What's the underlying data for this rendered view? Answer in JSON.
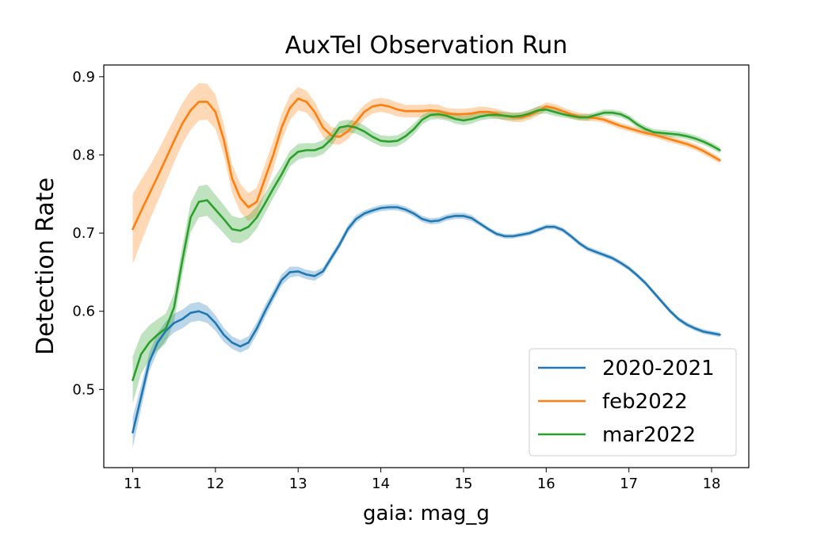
{
  "chart_data": {
    "type": "line",
    "title": "AuxTel Observation Run",
    "xlabel": "gaia: mag_g",
    "ylabel": "Detection Rate",
    "xlim": [
      10.65,
      18.45
    ],
    "ylim": [
      0.4,
      0.915
    ],
    "xticks": [
      11,
      12,
      13,
      14,
      15,
      16,
      17,
      18
    ],
    "yticks": [
      0.5,
      0.6,
      0.7,
      0.8,
      0.9
    ],
    "grid": false,
    "legend_position": "lower-right",
    "series": [
      {
        "name": "2020-2021",
        "color": "#1f77b4",
        "x": [
          11.0,
          11.1,
          11.2,
          11.3,
          11.4,
          11.5,
          11.6,
          11.7,
          11.8,
          11.9,
          12.0,
          12.1,
          12.2,
          12.3,
          12.4,
          12.5,
          12.6,
          12.7,
          12.8,
          12.9,
          13.0,
          13.1,
          13.2,
          13.3,
          13.4,
          13.5,
          13.6,
          13.7,
          13.8,
          13.9,
          14.0,
          14.1,
          14.2,
          14.3,
          14.4,
          14.5,
          14.6,
          14.7,
          14.8,
          14.9,
          15.0,
          15.1,
          15.2,
          15.3,
          15.4,
          15.5,
          15.6,
          15.7,
          15.8,
          15.9,
          16.0,
          16.1,
          16.2,
          16.3,
          16.4,
          16.5,
          16.6,
          16.7,
          16.8,
          16.9,
          17.0,
          17.1,
          17.2,
          17.3,
          17.4,
          17.5,
          17.6,
          17.7,
          17.8,
          17.9,
          18.0,
          18.1
        ],
        "y": [
          0.445,
          0.49,
          0.535,
          0.56,
          0.575,
          0.585,
          0.59,
          0.598,
          0.6,
          0.596,
          0.585,
          0.57,
          0.56,
          0.555,
          0.56,
          0.578,
          0.6,
          0.62,
          0.64,
          0.65,
          0.651,
          0.647,
          0.645,
          0.651,
          0.668,
          0.685,
          0.705,
          0.718,
          0.725,
          0.729,
          0.732,
          0.733,
          0.733,
          0.73,
          0.725,
          0.718,
          0.715,
          0.716,
          0.72,
          0.722,
          0.722,
          0.719,
          0.712,
          0.705,
          0.699,
          0.696,
          0.696,
          0.698,
          0.7,
          0.704,
          0.708,
          0.708,
          0.704,
          0.696,
          0.687,
          0.68,
          0.676,
          0.672,
          0.668,
          0.662,
          0.655,
          0.646,
          0.636,
          0.624,
          0.612,
          0.6,
          0.59,
          0.583,
          0.578,
          0.574,
          0.572,
          0.57
        ],
        "band": [
          0.02,
          0.015,
          0.012,
          0.012,
          0.012,
          0.012,
          0.012,
          0.012,
          0.012,
          0.011,
          0.01,
          0.009,
          0.008,
          0.008,
          0.008,
          0.008,
          0.008,
          0.007,
          0.007,
          0.007,
          0.006,
          0.006,
          0.006,
          0.005,
          0.005,
          0.005,
          0.005,
          0.005,
          0.004,
          0.004,
          0.004,
          0.004,
          0.004,
          0.004,
          0.004,
          0.004,
          0.004,
          0.004,
          0.004,
          0.004,
          0.004,
          0.004,
          0.003,
          0.003,
          0.003,
          0.003,
          0.003,
          0.003,
          0.003,
          0.003,
          0.003,
          0.003,
          0.003,
          0.003,
          0.003,
          0.003,
          0.003,
          0.003,
          0.003,
          0.003,
          0.003,
          0.003,
          0.003,
          0.003,
          0.003,
          0.003,
          0.003,
          0.003,
          0.003,
          0.003,
          0.003,
          0.003
        ]
      },
      {
        "name": "feb2022",
        "color": "#ff7f0e",
        "x": [
          11.0,
          11.1,
          11.2,
          11.3,
          11.4,
          11.5,
          11.6,
          11.7,
          11.8,
          11.9,
          12.0,
          12.1,
          12.2,
          12.3,
          12.4,
          12.5,
          12.6,
          12.7,
          12.8,
          12.9,
          13.0,
          13.1,
          13.2,
          13.3,
          13.4,
          13.5,
          13.6,
          13.7,
          13.8,
          13.9,
          14.0,
          14.1,
          14.2,
          14.3,
          14.4,
          14.5,
          14.6,
          14.7,
          14.8,
          14.9,
          15.0,
          15.1,
          15.2,
          15.3,
          15.4,
          15.5,
          15.6,
          15.7,
          15.8,
          15.9,
          16.0,
          16.1,
          16.2,
          16.3,
          16.4,
          16.5,
          16.6,
          16.7,
          16.8,
          16.9,
          17.0,
          17.1,
          17.2,
          17.3,
          17.4,
          17.5,
          17.6,
          17.7,
          17.8,
          17.9,
          18.0,
          18.1
        ],
        "y": [
          0.705,
          0.728,
          0.75,
          0.772,
          0.795,
          0.818,
          0.84,
          0.857,
          0.868,
          0.868,
          0.855,
          0.82,
          0.77,
          0.745,
          0.733,
          0.74,
          0.77,
          0.8,
          0.835,
          0.86,
          0.872,
          0.868,
          0.855,
          0.835,
          0.825,
          0.823,
          0.83,
          0.842,
          0.855,
          0.862,
          0.864,
          0.862,
          0.858,
          0.856,
          0.856,
          0.856,
          0.857,
          0.856,
          0.853,
          0.852,
          0.852,
          0.853,
          0.855,
          0.855,
          0.853,
          0.85,
          0.848,
          0.848,
          0.851,
          0.856,
          0.862,
          0.86,
          0.856,
          0.852,
          0.849,
          0.848,
          0.847,
          0.845,
          0.841,
          0.837,
          0.834,
          0.831,
          0.828,
          0.826,
          0.823,
          0.82,
          0.817,
          0.814,
          0.81,
          0.805,
          0.799,
          0.793
        ],
        "band": [
          0.045,
          0.04,
          0.035,
          0.032,
          0.03,
          0.028,
          0.026,
          0.025,
          0.024,
          0.023,
          0.022,
          0.02,
          0.018,
          0.018,
          0.018,
          0.018,
          0.018,
          0.018,
          0.017,
          0.016,
          0.015,
          0.014,
          0.013,
          0.012,
          0.011,
          0.01,
          0.01,
          0.01,
          0.009,
          0.009,
          0.009,
          0.009,
          0.009,
          0.008,
          0.008,
          0.008,
          0.008,
          0.008,
          0.007,
          0.007,
          0.007,
          0.007,
          0.007,
          0.006,
          0.006,
          0.006,
          0.006,
          0.006,
          0.006,
          0.006,
          0.005,
          0.005,
          0.005,
          0.005,
          0.005,
          0.005,
          0.004,
          0.004,
          0.004,
          0.004,
          0.004,
          0.004,
          0.004,
          0.004,
          0.004,
          0.004,
          0.004,
          0.004,
          0.004,
          0.004,
          0.004,
          0.004
        ]
      },
      {
        "name": "mar2022",
        "color": "#2ca02c",
        "x": [
          11.0,
          11.1,
          11.2,
          11.3,
          11.4,
          11.5,
          11.6,
          11.7,
          11.8,
          11.9,
          12.0,
          12.1,
          12.2,
          12.3,
          12.4,
          12.5,
          12.6,
          12.7,
          12.8,
          12.9,
          13.0,
          13.1,
          13.2,
          13.3,
          13.4,
          13.5,
          13.6,
          13.7,
          13.8,
          13.9,
          14.0,
          14.1,
          14.2,
          14.3,
          14.4,
          14.5,
          14.6,
          14.7,
          14.8,
          14.9,
          15.0,
          15.1,
          15.2,
          15.3,
          15.4,
          15.5,
          15.6,
          15.7,
          15.8,
          15.9,
          16.0,
          16.1,
          16.2,
          16.3,
          16.4,
          16.5,
          16.6,
          16.7,
          16.8,
          16.9,
          17.0,
          17.1,
          17.2,
          17.3,
          17.4,
          17.5,
          17.6,
          17.7,
          17.8,
          17.9,
          18.0,
          18.1
        ],
        "y": [
          0.512,
          0.545,
          0.56,
          0.57,
          0.578,
          0.605,
          0.665,
          0.72,
          0.74,
          0.742,
          0.73,
          0.718,
          0.705,
          0.703,
          0.708,
          0.72,
          0.738,
          0.757,
          0.775,
          0.795,
          0.804,
          0.806,
          0.806,
          0.81,
          0.82,
          0.835,
          0.837,
          0.835,
          0.83,
          0.823,
          0.818,
          0.817,
          0.818,
          0.824,
          0.833,
          0.845,
          0.851,
          0.852,
          0.85,
          0.846,
          0.844,
          0.846,
          0.849,
          0.851,
          0.851,
          0.85,
          0.849,
          0.85,
          0.853,
          0.857,
          0.858,
          0.855,
          0.852,
          0.85,
          0.848,
          0.848,
          0.851,
          0.854,
          0.854,
          0.852,
          0.847,
          0.839,
          0.833,
          0.829,
          0.828,
          0.827,
          0.826,
          0.824,
          0.821,
          0.817,
          0.812,
          0.806
        ],
        "band": [
          0.03,
          0.025,
          0.022,
          0.02,
          0.019,
          0.018,
          0.018,
          0.019,
          0.02,
          0.02,
          0.019,
          0.018,
          0.017,
          0.016,
          0.015,
          0.014,
          0.013,
          0.012,
          0.011,
          0.01,
          0.01,
          0.009,
          0.009,
          0.009,
          0.009,
          0.008,
          0.008,
          0.008,
          0.008,
          0.007,
          0.007,
          0.007,
          0.007,
          0.007,
          0.007,
          0.006,
          0.006,
          0.006,
          0.006,
          0.006,
          0.006,
          0.006,
          0.005,
          0.005,
          0.005,
          0.005,
          0.005,
          0.005,
          0.005,
          0.005,
          0.005,
          0.005,
          0.004,
          0.004,
          0.004,
          0.004,
          0.004,
          0.004,
          0.004,
          0.004,
          0.004,
          0.004,
          0.004,
          0.004,
          0.004,
          0.004,
          0.004,
          0.004,
          0.004,
          0.004,
          0.004,
          0.004
        ]
      }
    ]
  }
}
